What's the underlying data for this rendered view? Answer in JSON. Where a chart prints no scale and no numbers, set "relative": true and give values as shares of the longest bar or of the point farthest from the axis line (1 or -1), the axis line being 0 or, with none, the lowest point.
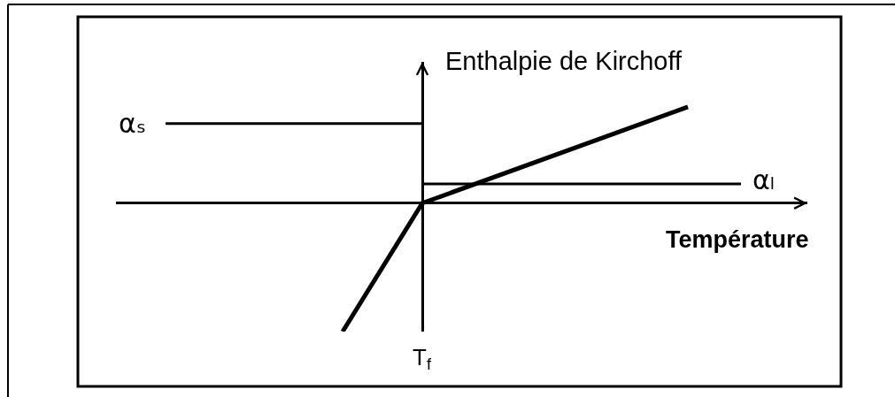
{
  "chart_data": {
    "type": "line",
    "relative": true,
    "xlabel": "Température",
    "ylabel": "Enthalpie de Kirchoff",
    "annotations": [
      "T$_{f}$"
    ],
    "categories": [
      null,
      null,
      null,
      null,
      null,
      null,
      null,
      null,
      null,
      null,
      null,
      null,
      null,
      null,
      null,
      null,
      null,
      null,
      null,
      null,
      null,
      null,
      null,
      null,
      null,
      null,
      null,
      null,
      null,
      null,
      null,
      null,
      null,
      null,
      null,
      null,
      null,
      null,
      null,
      null,
      null,
      null,
      null,
      null,
      null,
      null,
      null,
      null,
      null,
      null,
      null,
      null,
      null,
      null,
      null,
      null,
      null,
      null,
      null,
      null,
      null,
      null,
      null,
      null,
      null,
      null
    ],
    "legend": false,
    "marker": "none",
    "line_style": "solid",
    "series": [
      {
        "color": "#000000",
        "values": [
          null,
          null,
          null,
          null,
          null,
          null,
          null,
          null,
          null,
          null,
          null,
          null,
          null,
          null,
          null,
          null,
          null,
          null,
          null,
          null,
          -1,
          null,
          null,
          null,
          null,
          null,
          null,
          null,
          null,
          0,
          null,
          null,
          null,
          null,
          null,
          null,
          null,
          null,
          null,
          null,
          null,
          null,
          null,
          null,
          null,
          null,
          null,
          null,
          null,
          null,
          null,
          null,
          null,
          null,
          null,
          null,
          null,
          null,
          null,
          0.75,
          null,
          null,
          null,
          null,
          null,
          null
        ]
      },
      {
        "name": "αₛ",
        "color": "#000000",
        "values": [
          0.62,
          null,
          null,
          null,
          null,
          null,
          null,
          null,
          null,
          null,
          null,
          null,
          null,
          null,
          null,
          null,
          null,
          null,
          null,
          null,
          null,
          null,
          null,
          null,
          null,
          null,
          null,
          null,
          null,
          0.62,
          null,
          null,
          null,
          null,
          null,
          null,
          null,
          null,
          null,
          null,
          null,
          null,
          null,
          null,
          null,
          null,
          null,
          null,
          null,
          null,
          null,
          null,
          null,
          null,
          null,
          null,
          null,
          null,
          null,
          null,
          null,
          null,
          null,
          null,
          null,
          null
        ]
      },
      {
        "name": "αₗ",
        "color": "#000000",
        "values": [
          null,
          null,
          null,
          null,
          null,
          null,
          null,
          null,
          null,
          null,
          null,
          null,
          null,
          null,
          null,
          null,
          null,
          null,
          null,
          null,
          null,
          null,
          null,
          null,
          null,
          null,
          null,
          null,
          null,
          0.15,
          null,
          null,
          null,
          null,
          null,
          null,
          null,
          null,
          null,
          null,
          null,
          null,
          null,
          null,
          null,
          null,
          null,
          null,
          null,
          null,
          null,
          null,
          null,
          null,
          null,
          null,
          null,
          null,
          null,
          null,
          null,
          null,
          null,
          null,
          null,
          0.15
        ]
      }
    ]
  }
}
